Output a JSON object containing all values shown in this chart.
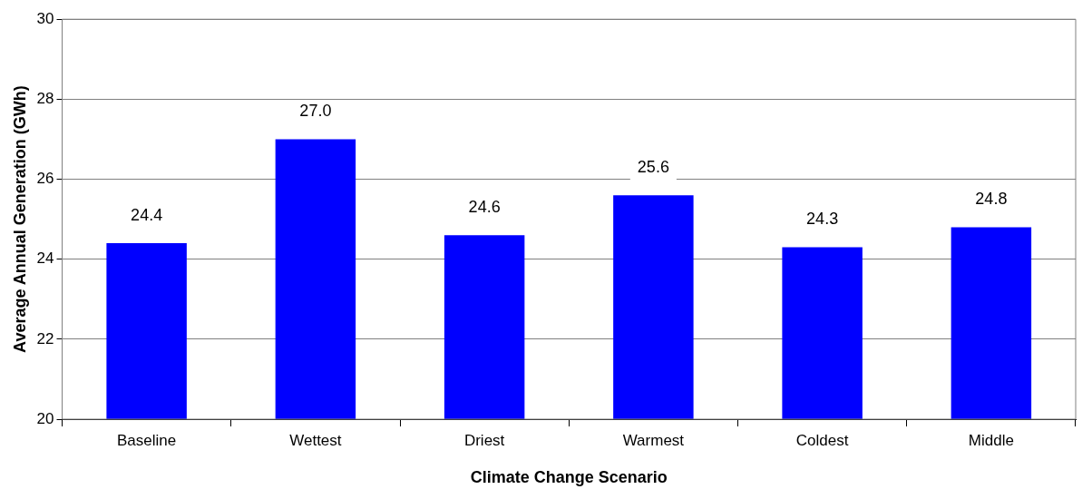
{
  "chart_data": {
    "type": "bar",
    "xlabel": "Climate Change Scenario",
    "ylabel": "Average Annual Generation (GWh)",
    "categories": [
      "Baseline",
      "Wettest",
      "Driest",
      "Warmest",
      "Coldest",
      "Middle"
    ],
    "values": [
      24.4,
      27.0,
      24.6,
      25.6,
      24.3,
      24.8
    ],
    "value_labels": [
      "24.4",
      "27.0",
      "24.6",
      "25.6",
      "24.3",
      "24.8"
    ],
    "color": "#0000ff",
    "ylim": [
      20,
      30
    ],
    "yticks": [
      20,
      22,
      24,
      26,
      28,
      30
    ],
    "grid": "y",
    "legend": false
  }
}
